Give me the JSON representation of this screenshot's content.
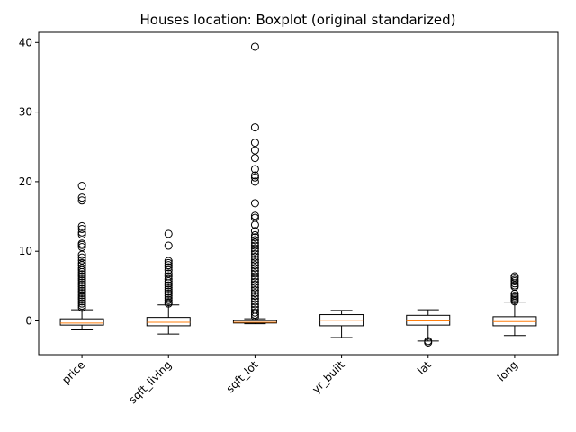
{
  "chart_data": {
    "type": "boxplot",
    "title": "Houses location: Boxplot (original standarized)",
    "xlabel": "",
    "ylabel": "",
    "ylim": [
      -5,
      42
    ],
    "yticks": [
      0,
      10,
      20,
      30,
      40
    ],
    "grid": false,
    "colors": {
      "box": "#000000",
      "median": "#ff7f0e",
      "background": "#ffffff"
    },
    "categories": [
      "price",
      "sqft_living",
      "sqft_lot",
      "yr_built",
      "lat",
      "long"
    ],
    "boxes": [
      {
        "name": "price",
        "whisker_low": -1.3,
        "q1": -0.6,
        "median": -0.3,
        "q3": 0.3,
        "whisker_high": 1.6,
        "outliers": [
          19.4,
          17.7,
          17.3,
          13.6,
          13.2,
          12.7,
          12.4,
          11.1,
          10.9,
          10.6,
          9.5,
          9.1,
          8.7,
          8.3,
          8.0,
          7.6,
          7.3,
          7.0,
          6.7,
          6.4,
          6.1,
          5.8,
          5.5,
          5.2,
          4.9,
          4.6,
          4.3,
          4.0,
          3.7,
          3.4,
          3.1,
          2.8,
          2.5,
          2.2,
          1.9
        ]
      },
      {
        "name": "sqft_living",
        "whisker_low": -1.9,
        "q1": -0.7,
        "median": -0.2,
        "q3": 0.5,
        "whisker_high": 2.3,
        "outliers": [
          12.5,
          10.8,
          8.6,
          8.3,
          8.0,
          7.7,
          7.3,
          6.8,
          6.4,
          6.0,
          5.7,
          5.4,
          5.1,
          4.8,
          4.5,
          4.2,
          3.9,
          3.6,
          3.3,
          3.0,
          2.7,
          2.5
        ]
      },
      {
        "name": "sqft_lot",
        "whisker_low": -0.4,
        "q1": -0.3,
        "median": -0.2,
        "q3": 0.05,
        "whisker_high": 0.3,
        "outliers": [
          39.4,
          27.8,
          25.6,
          24.5,
          23.4,
          21.8,
          20.9,
          20.6,
          20.0,
          16.9,
          15.1,
          14.8,
          13.8,
          12.9,
          12.3,
          12.0,
          11.6,
          11.2,
          10.8,
          10.4,
          10.0,
          9.6,
          9.2,
          8.8,
          8.4,
          8.0,
          7.6,
          7.2,
          6.8,
          6.4,
          6.0,
          5.6,
          5.2,
          4.8,
          4.4,
          4.0,
          3.6,
          3.2,
          2.8,
          2.4,
          2.0,
          1.6,
          1.2,
          0.9,
          0.6
        ]
      },
      {
        "name": "yr_built",
        "whisker_low": -2.4,
        "q1": -0.7,
        "median": 0.1,
        "q3": 0.9,
        "whisker_high": 1.5,
        "outliers": []
      },
      {
        "name": "lat",
        "whisker_low": -2.9,
        "q1": -0.6,
        "median": 0.0,
        "q3": 0.8,
        "whisker_high": 1.6,
        "outliers": [
          -2.9,
          -3.1
        ]
      },
      {
        "name": "long",
        "whisker_low": -2.1,
        "q1": -0.7,
        "median": -0.1,
        "q3": 0.6,
        "whisker_high": 2.7,
        "outliers": [
          6.4,
          6.2,
          5.9,
          5.7,
          5.4,
          5.1,
          4.9,
          3.9,
          3.6,
          3.4,
          3.2,
          3.0,
          2.8
        ]
      }
    ]
  }
}
